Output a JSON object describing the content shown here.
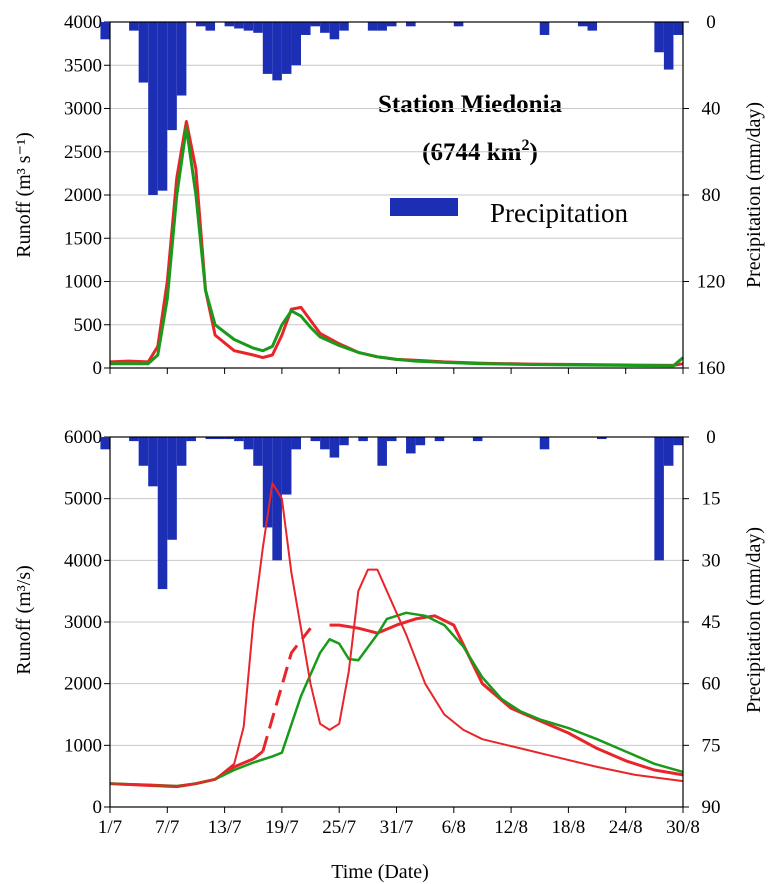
{
  "colors": {
    "precip": "#1c2fb4",
    "observed": "#e8252a",
    "simulated": "#1a9a1a",
    "grid": "#c8c8c8"
  },
  "xaxis": {
    "label": "Time (Date)",
    "tick_labels": [
      "1/7",
      "7/7",
      "13/7",
      "19/7",
      "25/7",
      "31/7",
      "6/8",
      "12/8",
      "18/8",
      "24/8",
      "30/8"
    ],
    "day_range": [
      1,
      61
    ]
  },
  "chart_data": [
    {
      "type": "line",
      "title": "Station Miedonia",
      "subtitle": "(6744 km",
      "subtitle_sup": "2",
      "subtitle_end": ")",
      "ylabel_left": "Runoff (m³ s⁻¹)",
      "ylabel_right": "Precipitation (mm/day)",
      "ylim_left": [
        0,
        4000
      ],
      "yticks_left": [
        0,
        500,
        1000,
        1500,
        2000,
        2500,
        3000,
        3500,
        4000
      ],
      "ylim_right_inverted": [
        0,
        160
      ],
      "yticks_right": [
        0,
        40,
        80,
        120,
        160
      ],
      "legend": {
        "precip_label": "Precipitation"
      },
      "precip": [
        [
          1,
          8
        ],
        [
          4,
          4
        ],
        [
          5,
          28
        ],
        [
          6,
          80
        ],
        [
          7,
          78
        ],
        [
          8,
          50
        ],
        [
          9,
          34
        ],
        [
          11,
          2
        ],
        [
          12,
          4
        ],
        [
          14,
          2
        ],
        [
          15,
          3
        ],
        [
          16,
          4
        ],
        [
          17,
          5
        ],
        [
          18,
          24
        ],
        [
          19,
          27
        ],
        [
          20,
          24
        ],
        [
          21,
          20
        ],
        [
          22,
          6
        ],
        [
          23,
          2
        ],
        [
          24,
          5
        ],
        [
          25,
          8
        ],
        [
          26,
          4
        ],
        [
          29,
          4
        ],
        [
          30,
          4
        ],
        [
          31,
          2
        ],
        [
          33,
          2
        ],
        [
          38,
          2
        ],
        [
          47,
          6
        ],
        [
          51,
          2
        ],
        [
          52,
          4
        ],
        [
          59,
          14
        ],
        [
          60,
          22
        ],
        [
          61,
          6
        ]
      ],
      "series": [
        {
          "key": "observed",
          "width": 3,
          "points": [
            [
              1,
              70
            ],
            [
              3,
              80
            ],
            [
              5,
              70
            ],
            [
              6,
              250
            ],
            [
              7,
              1000
            ],
            [
              8,
              2200
            ],
            [
              9,
              2850
            ],
            [
              10,
              2300
            ],
            [
              11,
              900
            ],
            [
              12,
              380
            ],
            [
              14,
              200
            ],
            [
              16,
              150
            ],
            [
              17,
              120
            ],
            [
              18,
              150
            ],
            [
              19,
              380
            ],
            [
              20,
              680
            ],
            [
              21,
              700
            ],
            [
              22,
              550
            ],
            [
              23,
              400
            ],
            [
              25,
              280
            ],
            [
              27,
              180
            ],
            [
              29,
              130
            ],
            [
              31,
              100
            ],
            [
              33,
              90
            ],
            [
              36,
              70
            ],
            [
              40,
              55
            ],
            [
              45,
              45
            ],
            [
              50,
              40
            ],
            [
              55,
              35
            ],
            [
              60,
              30
            ],
            [
              61,
              50
            ]
          ]
        },
        {
          "key": "simulated",
          "width": 3,
          "points": [
            [
              1,
              50
            ],
            [
              3,
              50
            ],
            [
              5,
              50
            ],
            [
              6,
              150
            ],
            [
              7,
              800
            ],
            [
              8,
              2000
            ],
            [
              9,
              2780
            ],
            [
              10,
              2000
            ],
            [
              11,
              900
            ],
            [
              12,
              500
            ],
            [
              14,
              330
            ],
            [
              16,
              230
            ],
            [
              17,
              200
            ],
            [
              18,
              250
            ],
            [
              19,
              500
            ],
            [
              20,
              660
            ],
            [
              21,
              600
            ],
            [
              22,
              470
            ],
            [
              23,
              360
            ],
            [
              25,
              260
            ],
            [
              27,
              180
            ],
            [
              29,
              130
            ],
            [
              31,
              100
            ],
            [
              33,
              80
            ],
            [
              36,
              65
            ],
            [
              40,
              50
            ],
            [
              45,
              40
            ],
            [
              50,
              35
            ],
            [
              55,
              30
            ],
            [
              60,
              25
            ],
            [
              61,
              120
            ]
          ]
        }
      ]
    },
    {
      "type": "line",
      "ylabel_left": "Runoff (m³/s)",
      "ylabel_right": "Precipitation (mm/day)",
      "ylim_left": [
        0,
        6000
      ],
      "yticks_left": [
        0,
        1000,
        2000,
        3000,
        4000,
        5000,
        6000
      ],
      "ylim_right_inverted": [
        0,
        90
      ],
      "yticks_right": [
        0,
        15,
        30,
        45,
        60,
        75,
        90
      ],
      "precip": [
        [
          1,
          3
        ],
        [
          4,
          1
        ],
        [
          5,
          7
        ],
        [
          6,
          12
        ],
        [
          7,
          37
        ],
        [
          8,
          25
        ],
        [
          9,
          7
        ],
        [
          10,
          1
        ],
        [
          12,
          0.5
        ],
        [
          13,
          0.5
        ],
        [
          14,
          0.5
        ],
        [
          15,
          1
        ],
        [
          16,
          3
        ],
        [
          17,
          7
        ],
        [
          18,
          22
        ],
        [
          19,
          30
        ],
        [
          20,
          14
        ],
        [
          21,
          3
        ],
        [
          23,
          1
        ],
        [
          24,
          3
        ],
        [
          25,
          5
        ],
        [
          26,
          2
        ],
        [
          28,
          1
        ],
        [
          30,
          7
        ],
        [
          31,
          1
        ],
        [
          33,
          4
        ],
        [
          34,
          2
        ],
        [
          36,
          1
        ],
        [
          40,
          1
        ],
        [
          47,
          3
        ],
        [
          53,
          0.5
        ],
        [
          59,
          30
        ],
        [
          60,
          7
        ],
        [
          61,
          2
        ]
      ],
      "series": [
        {
          "key": "observed",
          "width": 3,
          "dash": "gap",
          "gap_range": [
            17,
            23
          ],
          "points": [
            [
              1,
              380
            ],
            [
              5,
              350
            ],
            [
              8,
              330
            ],
            [
              10,
              380
            ],
            [
              12,
              450
            ],
            [
              14,
              650
            ],
            [
              16,
              780
            ],
            [
              17,
              900
            ],
            [
              20,
              2500
            ],
            [
              22,
              2900
            ],
            [
              24,
              2950
            ],
            [
              25,
              2950
            ],
            [
              27,
              2900
            ],
            [
              29,
              2820
            ],
            [
              31,
              2950
            ],
            [
              33,
              3050
            ],
            [
              35,
              3100
            ],
            [
              37,
              2950
            ],
            [
              40,
              2000
            ],
            [
              43,
              1600
            ],
            [
              46,
              1400
            ],
            [
              49,
              1200
            ],
            [
              52,
              950
            ],
            [
              55,
              750
            ],
            [
              58,
              600
            ],
            [
              61,
              520
            ]
          ]
        },
        {
          "key": "simulated",
          "width": 2.5,
          "points": [
            [
              1,
              380
            ],
            [
              5,
              360
            ],
            [
              8,
              340
            ],
            [
              10,
              380
            ],
            [
              12,
              450
            ],
            [
              14,
              600
            ],
            [
              16,
              720
            ],
            [
              18,
              820
            ],
            [
              19,
              880
            ],
            [
              21,
              1800
            ],
            [
              23,
              2500
            ],
            [
              24,
              2720
            ],
            [
              25,
              2650
            ],
            [
              26,
              2400
            ],
            [
              27,
              2380
            ],
            [
              29,
              2800
            ],
            [
              30,
              3050
            ],
            [
              32,
              3150
            ],
            [
              34,
              3100
            ],
            [
              36,
              2950
            ],
            [
              38,
              2600
            ],
            [
              40,
              2100
            ],
            [
              42,
              1750
            ],
            [
              44,
              1550
            ],
            [
              46,
              1420
            ],
            [
              49,
              1280
            ],
            [
              52,
              1100
            ],
            [
              55,
              900
            ],
            [
              58,
              700
            ],
            [
              61,
              570
            ]
          ]
        },
        {
          "key": "observed",
          "width": 2,
          "points": [
            [
              1,
              380
            ],
            [
              5,
              360
            ],
            [
              8,
              340
            ],
            [
              10,
              380
            ],
            [
              12,
              450
            ],
            [
              14,
              700
            ],
            [
              15,
              1300
            ],
            [
              16,
              3000
            ],
            [
              17,
              4200
            ],
            [
              18,
              5250
            ],
            [
              19,
              5000
            ],
            [
              20,
              3800
            ],
            [
              22,
              2000
            ],
            [
              23,
              1350
            ],
            [
              24,
              1250
            ],
            [
              25,
              1350
            ],
            [
              26,
              2200
            ],
            [
              27,
              3500
            ],
            [
              28,
              3850
            ],
            [
              29,
              3850
            ],
            [
              30,
              3500
            ],
            [
              32,
              2800
            ],
            [
              34,
              2000
            ],
            [
              36,
              1500
            ],
            [
              38,
              1250
            ],
            [
              40,
              1100
            ],
            [
              44,
              950
            ],
            [
              48,
              800
            ],
            [
              52,
              650
            ],
            [
              56,
              520
            ],
            [
              61,
              420
            ]
          ]
        }
      ]
    }
  ]
}
